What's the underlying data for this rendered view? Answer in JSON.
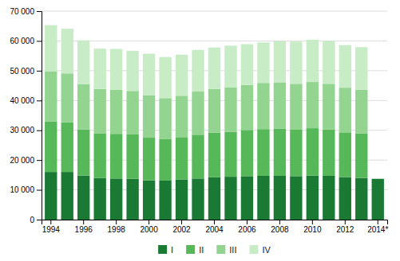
{
  "chart_data": {
    "type": "bar",
    "stacked": true,
    "categories": [
      "1994",
      null,
      "1996",
      null,
      "1998",
      null,
      "2000",
      null,
      "2002",
      null,
      "2004",
      null,
      "2006",
      null,
      "2008",
      null,
      "2010",
      null,
      "2012",
      null,
      "2014*"
    ],
    "series": [
      {
        "name": "I",
        "color": "#1a7a34",
        "values": [
          16000,
          16000,
          14800,
          14000,
          13800,
          13700,
          13200,
          13100,
          13500,
          13800,
          14200,
          14400,
          14600,
          14700,
          14700,
          14600,
          14800,
          14700,
          14300,
          14000,
          13700
        ]
      },
      {
        "name": "II",
        "color": "#57b85a",
        "values": [
          17000,
          16700,
          15500,
          15000,
          15000,
          14900,
          14300,
          13900,
          14200,
          14700,
          15000,
          15100,
          15500,
          15700,
          15900,
          15600,
          15900,
          15600,
          15000,
          14900,
          0
        ]
      },
      {
        "name": "III",
        "color": "#93d490",
        "values": [
          16800,
          16400,
          15200,
          14900,
          14800,
          14600,
          14300,
          13800,
          13900,
          14500,
          14700,
          14900,
          15100,
          15500,
          15500,
          15400,
          15500,
          15300,
          15000,
          14700,
          0
        ]
      },
      {
        "name": "IV",
        "color": "#c8ecc6",
        "values": [
          15500,
          15000,
          14700,
          13500,
          13700,
          13500,
          13900,
          13800,
          13800,
          14000,
          13900,
          14000,
          13700,
          13600,
          13800,
          14200,
          14200,
          14400,
          14300,
          14300,
          0
        ]
      }
    ],
    "ylim": [
      0,
      70000
    ],
    "yticks": [
      0,
      {
        "value": 10000,
        "label": "10 000"
      },
      {
        "value": 20000,
        "label": "20 000"
      },
      {
        "value": 30000,
        "label": "30 000"
      },
      {
        "value": 40000,
        "label": "40 000"
      },
      {
        "value": 50000,
        "label": "50 000"
      },
      {
        "value": 60000,
        "label": "60 000"
      },
      {
        "value": 70000,
        "label": "70 000"
      }
    ],
    "grid": true,
    "legend": "bottom"
  }
}
